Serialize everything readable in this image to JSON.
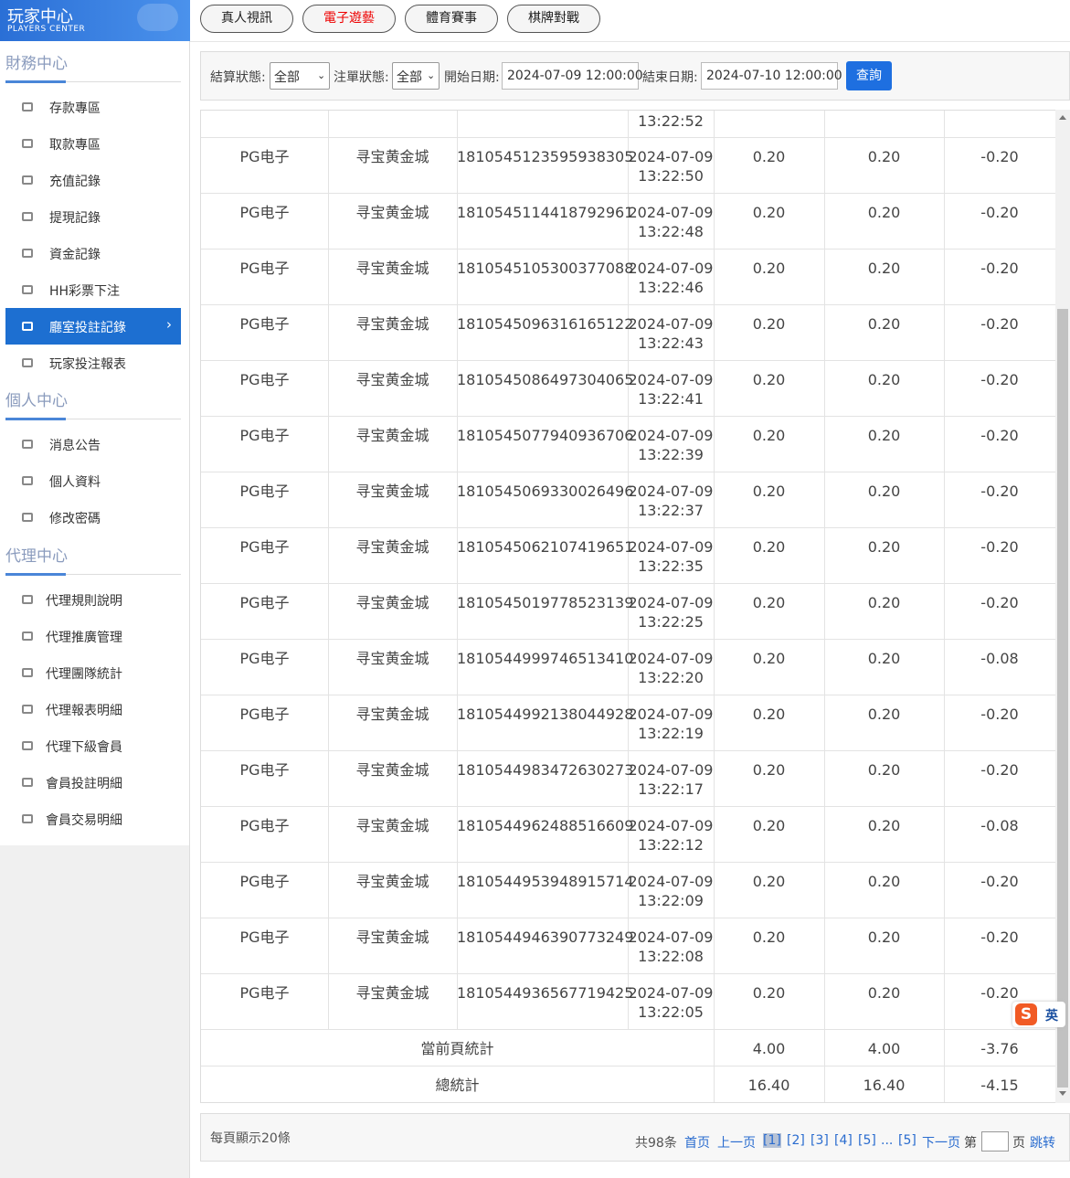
{
  "header": {
    "title": "玩家中心",
    "subtitle": "PLAYERS CENTER"
  },
  "tabs": [
    {
      "label": "真人視訊"
    },
    {
      "label": "電子遊藝",
      "active": true
    },
    {
      "label": "體育賽事"
    },
    {
      "label": "棋牌對戰"
    }
  ],
  "sidebar": {
    "sections": [
      {
        "title": "財務中心",
        "items": [
          "存款專區",
          "取款專區",
          "充值記錄",
          "提現記錄",
          "資金記錄",
          "HH彩票下注",
          {
            "label": "廳室投註記錄",
            "active": true
          },
          "玩家投注報表"
        ]
      },
      {
        "title": "個人中心",
        "items": [
          "消息公告",
          "個人資料",
          "修改密碼"
        ]
      },
      {
        "title": "代理中心",
        "items": [
          "代理規則說明",
          "代理推廣管理",
          "代理團隊統計",
          "代理報表明細",
          "代理下級會員",
          "會員投註明細",
          "會員交易明細"
        ]
      }
    ]
  },
  "filters": {
    "settle_label": "結算狀態:",
    "settle_value": "全部",
    "bet_label": "注單狀態:",
    "bet_value": "全部",
    "start_label": "開始日期:",
    "start_value": "2024-07-09 12:00:00",
    "end_label": "結束日期:",
    "end_value": "2024-07-10 12:00:00",
    "button": "查詢"
  },
  "table": {
    "partial_time": "13:22:52",
    "rows": [
      [
        "PG电子",
        "寻宝黄金城",
        "1810545123595938305",
        "2024-07-09",
        "13:22:50",
        "0.20",
        "0.20",
        "-0.20"
      ],
      [
        "PG电子",
        "寻宝黄金城",
        "1810545114418792961",
        "2024-07-09",
        "13:22:48",
        "0.20",
        "0.20",
        "-0.20"
      ],
      [
        "PG电子",
        "寻宝黄金城",
        "1810545105300377088",
        "2024-07-09",
        "13:22:46",
        "0.20",
        "0.20",
        "-0.20"
      ],
      [
        "PG电子",
        "寻宝黄金城",
        "1810545096316165122",
        "2024-07-09",
        "13:22:43",
        "0.20",
        "0.20",
        "-0.20"
      ],
      [
        "PG电子",
        "寻宝黄金城",
        "1810545086497304065",
        "2024-07-09",
        "13:22:41",
        "0.20",
        "0.20",
        "-0.20"
      ],
      [
        "PG电子",
        "寻宝黄金城",
        "1810545077940936706",
        "2024-07-09",
        "13:22:39",
        "0.20",
        "0.20",
        "-0.20"
      ],
      [
        "PG电子",
        "寻宝黄金城",
        "1810545069330026496",
        "2024-07-09",
        "13:22:37",
        "0.20",
        "0.20",
        "-0.20"
      ],
      [
        "PG电子",
        "寻宝黄金城",
        "1810545062107419651",
        "2024-07-09",
        "13:22:35",
        "0.20",
        "0.20",
        "-0.20"
      ],
      [
        "PG电子",
        "寻宝黄金城",
        "1810545019778523139",
        "2024-07-09",
        "13:22:25",
        "0.20",
        "0.20",
        "-0.20"
      ],
      [
        "PG电子",
        "寻宝黄金城",
        "1810544999746513410",
        "2024-07-09",
        "13:22:20",
        "0.20",
        "0.20",
        "-0.08"
      ],
      [
        "PG电子",
        "寻宝黄金城",
        "1810544992138044928",
        "2024-07-09",
        "13:22:19",
        "0.20",
        "0.20",
        "-0.20"
      ],
      [
        "PG电子",
        "寻宝黄金城",
        "1810544983472630273",
        "2024-07-09",
        "13:22:17",
        "0.20",
        "0.20",
        "-0.20"
      ],
      [
        "PG电子",
        "寻宝黄金城",
        "1810544962488516609",
        "2024-07-09",
        "13:22:12",
        "0.20",
        "0.20",
        "-0.08"
      ],
      [
        "PG电子",
        "寻宝黄金城",
        "1810544953948915714",
        "2024-07-09",
        "13:22:09",
        "0.20",
        "0.20",
        "-0.20"
      ],
      [
        "PG电子",
        "寻宝黄金城",
        "1810544946390773249",
        "2024-07-09",
        "13:22:08",
        "0.20",
        "0.20",
        "-0.20"
      ],
      [
        "PG电子",
        "寻宝黄金城",
        "1810544936567719425",
        "2024-07-09",
        "13:22:05",
        "0.20",
        "0.20",
        "-0.20"
      ]
    ],
    "page_total": {
      "label": "當前頁統計",
      "values": [
        "4.00",
        "4.00",
        "-3.76"
      ]
    },
    "grand_total": {
      "label": "總統計",
      "values": [
        "16.40",
        "16.40",
        "-4.15"
      ]
    }
  },
  "pagination": {
    "per_page": "每頁顯示20條",
    "total": "共98条",
    "first": "首页",
    "prev": "上一页",
    "pages": [
      "[1]",
      "[2]",
      "[3]",
      "[4]",
      "[5]"
    ],
    "ellipsis": "...",
    "last": "[5]",
    "next": "下一页",
    "goto_prefix": "第",
    "goto_suffix": "页",
    "jump": "跳转"
  },
  "ime": "英"
}
